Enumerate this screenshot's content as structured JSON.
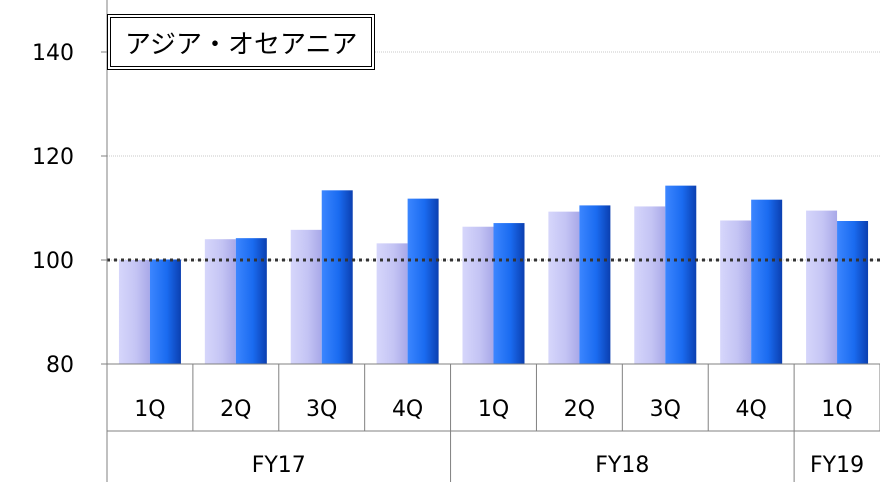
{
  "chart_data": {
    "type": "bar",
    "title": "アジア・オセアニア",
    "categories": [
      "1Q",
      "2Q",
      "3Q",
      "4Q",
      "1Q",
      "2Q",
      "3Q",
      "4Q",
      "1Q"
    ],
    "groups": [
      {
        "label": "FY17",
        "span": 4
      },
      {
        "label": "FY18",
        "span": 4
      },
      {
        "label": "FY19",
        "span": 1
      }
    ],
    "series": [
      {
        "values": [
          100,
          104,
          105.8,
          103.2,
          106.4,
          109.3,
          110.3,
          107.6,
          109.5
        ],
        "color": "#c4c4f4"
      },
      {
        "values": [
          100.1,
          104.2,
          113.4,
          111.8,
          107.1,
          110.5,
          114.3,
          111.6,
          107.5
        ],
        "color": "#1a6bf0"
      }
    ],
    "ylim": [
      80,
      150
    ],
    "yticks": [
      80,
      100,
      120,
      140
    ],
    "reference_line": 100,
    "grid": true,
    "xlabel": "",
    "ylabel": ""
  }
}
